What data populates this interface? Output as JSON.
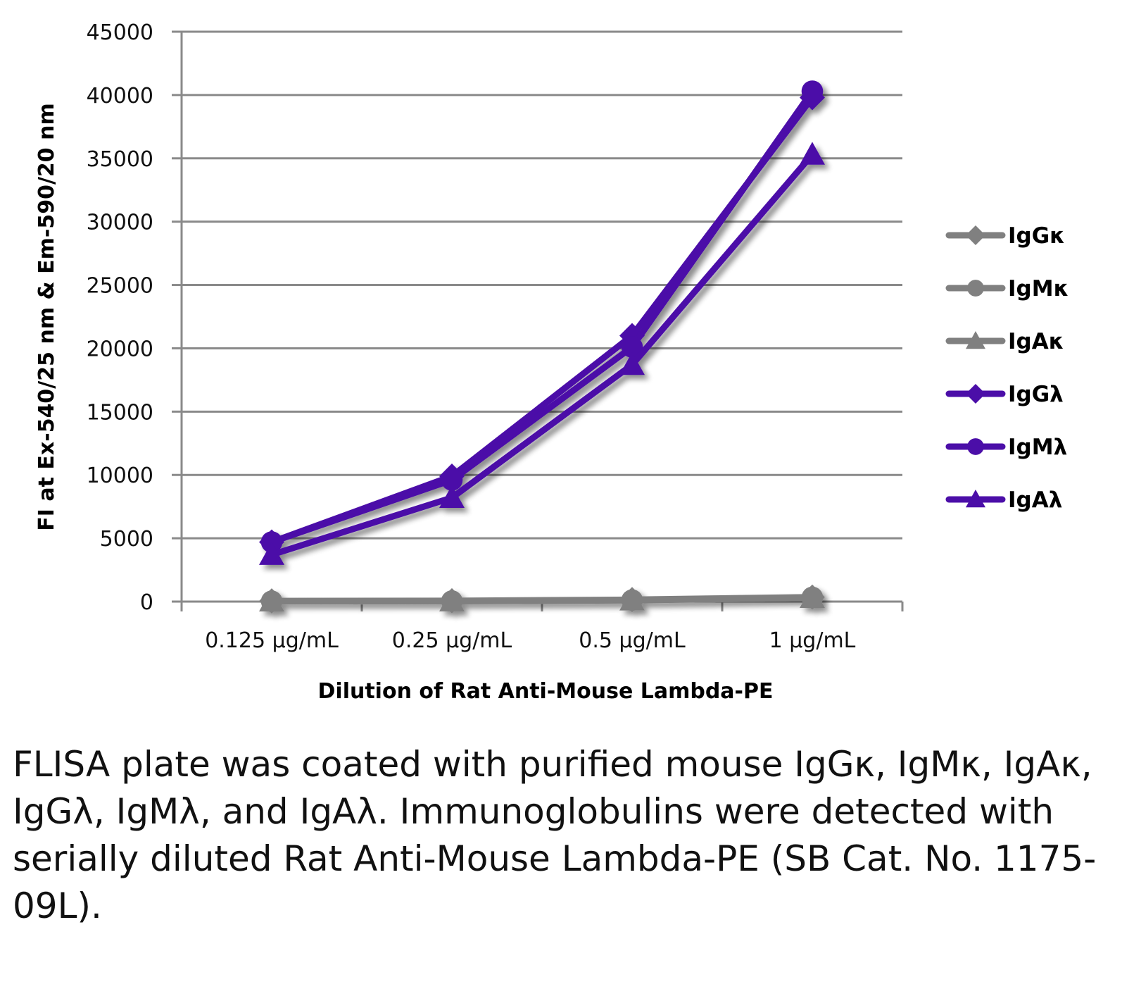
{
  "chart_data": {
    "type": "line",
    "title": "",
    "xlabel": "Dilution of Rat Anti-Mouse Lambda-PE",
    "ylabel": "FI at Ex-540/25 nm & Em-590/20 nm",
    "categories": [
      "0.125 µg/mL",
      "0.25 µg/mL",
      "0.5 µg/mL",
      "1 µg/mL"
    ],
    "ylim": [
      0,
      45000
    ],
    "yticks": [
      0,
      5000,
      10000,
      15000,
      20000,
      25000,
      30000,
      35000,
      40000,
      45000
    ],
    "grid": true,
    "legend_position": "right",
    "series": [
      {
        "name": "IgGκ",
        "marker": "diamond",
        "color": "#808080",
        "values": [
          50,
          60,
          150,
          350
        ]
      },
      {
        "name": "IgMκ",
        "marker": "circle",
        "color": "#808080",
        "values": [
          30,
          40,
          120,
          330
        ]
      },
      {
        "name": "IgAκ",
        "marker": "triangle",
        "color": "#808080",
        "values": [
          20,
          30,
          100,
          300
        ]
      },
      {
        "name": "IgGλ",
        "marker": "diamond",
        "color": "#4b0ea8",
        "values": [
          4700,
          9900,
          21000,
          39800
        ]
      },
      {
        "name": "IgMλ",
        "marker": "circle",
        "color": "#4b0ea8",
        "values": [
          4700,
          9600,
          20100,
          40300
        ]
      },
      {
        "name": "IgAλ",
        "marker": "triangle",
        "color": "#4b0ea8",
        "values": [
          3700,
          8200,
          18700,
          35300
        ]
      }
    ]
  },
  "caption": "FLISA plate was coated with purified mouse IgGκ, IgMκ, IgAκ, IgGλ, IgMλ, and IgAλ. Immunoglobulins were detected with serially diluted Rat Anti-Mouse Lambda-PE (SB Cat. No. 1175-09L)."
}
